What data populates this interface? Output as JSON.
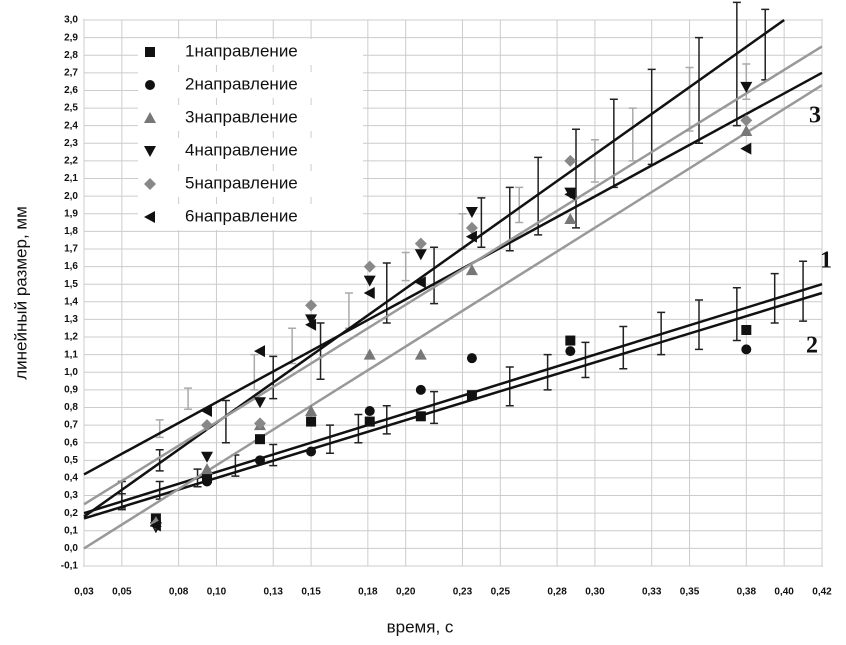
{
  "chart_data": {
    "type": "scatter",
    "x_label": "время, с",
    "y_label": "линейный размер, мм",
    "xlim": [
      0.03,
      0.42
    ],
    "ylim": [
      -0.1,
      3.0
    ],
    "grid": true,
    "legend": "upper left",
    "xticks": [
      {
        "value": 0.03,
        "label": "0,03"
      },
      {
        "value": 0.05,
        "label": "0,05"
      },
      {
        "value": 0.08,
        "label": "0,08"
      },
      {
        "value": 0.1,
        "label": "0,10"
      },
      {
        "value": 0.13,
        "label": "0,13"
      },
      {
        "value": 0.15,
        "label": "0,15"
      },
      {
        "value": 0.18,
        "label": "0,18"
      },
      {
        "value": 0.2,
        "label": "0,20"
      },
      {
        "value": 0.23,
        "label": "0,23"
      },
      {
        "value": 0.25,
        "label": "0,25"
      },
      {
        "value": 0.28,
        "label": "0,28"
      },
      {
        "value": 0.3,
        "label": "0,30"
      },
      {
        "value": 0.33,
        "label": "0,33"
      },
      {
        "value": 0.35,
        "label": "0,35"
      },
      {
        "value": 0.38,
        "label": "0,38"
      },
      {
        "value": 0.4,
        "label": "0,40"
      },
      {
        "value": 0.42,
        "label": "0,42"
      }
    ],
    "yticks": [
      {
        "value": -0.1,
        "label": "-0,1"
      },
      {
        "value": 0.0,
        "label": "0,0"
      },
      {
        "value": 0.1,
        "label": "0,1"
      },
      {
        "value": 0.2,
        "label": "0,2"
      },
      {
        "value": 0.3,
        "label": "0,3"
      },
      {
        "value": 0.4,
        "label": "0,4"
      },
      {
        "value": 0.5,
        "label": "0,5"
      },
      {
        "value": 0.6,
        "label": "0,6"
      },
      {
        "value": 0.7,
        "label": "0,7"
      },
      {
        "value": 0.8,
        "label": "0,8"
      },
      {
        "value": 0.9,
        "label": "0,9"
      },
      {
        "value": 1.0,
        "label": "1,0"
      },
      {
        "value": 1.1,
        "label": "1,1"
      },
      {
        "value": 1.2,
        "label": "1,2"
      },
      {
        "value": 1.3,
        "label": "1,3"
      },
      {
        "value": 1.4,
        "label": "1,4"
      },
      {
        "value": 1.5,
        "label": "1,5"
      },
      {
        "value": 1.6,
        "label": "1,6"
      },
      {
        "value": 1.7,
        "label": "1,7"
      },
      {
        "value": 1.8,
        "label": "1,8"
      },
      {
        "value": 1.9,
        "label": "1,9"
      },
      {
        "value": 2.0,
        "label": "2,0"
      },
      {
        "value": 2.1,
        "label": "2,1"
      },
      {
        "value": 2.2,
        "label": "2,2"
      },
      {
        "value": 2.3,
        "label": "2,3"
      },
      {
        "value": 2.4,
        "label": "2,4"
      },
      {
        "value": 2.5,
        "label": "2,5"
      },
      {
        "value": 2.6,
        "label": "2,6"
      },
      {
        "value": 2.7,
        "label": "2,7"
      },
      {
        "value": 2.8,
        "label": "2,8"
      },
      {
        "value": 2.9,
        "label": "2,9"
      },
      {
        "value": 3.0,
        "label": "3,0"
      }
    ],
    "series": [
      {
        "name": "1направление",
        "marker": "square",
        "color": "#111111",
        "x": [
          0.068,
          0.095,
          0.123,
          0.15,
          0.181,
          0.208,
          0.235,
          0.287,
          0.38
        ],
        "values": [
          0.17,
          0.4,
          0.62,
          0.72,
          0.72,
          0.75,
          0.87,
          1.18,
          1.24
        ]
      },
      {
        "name": "2направление",
        "marker": "circle",
        "color": "#111111",
        "x": [
          0.068,
          0.095,
          0.123,
          0.15,
          0.181,
          0.208,
          0.235,
          0.287,
          0.38
        ],
        "values": [
          0.15,
          0.38,
          0.5,
          0.55,
          0.78,
          0.9,
          1.08,
          1.12,
          1.13
        ]
      },
      {
        "name": "3направление",
        "marker": "triangle-up",
        "color": "#777777",
        "x": [
          0.068,
          0.095,
          0.123,
          0.15,
          0.181,
          0.208,
          0.235,
          0.287,
          0.38
        ],
        "values": [
          0.15,
          0.45,
          0.7,
          0.78,
          1.1,
          1.1,
          1.58,
          1.87,
          2.37
        ]
      },
      {
        "name": "4направление",
        "marker": "triangle-down",
        "color": "#111111",
        "x": [
          0.068,
          0.095,
          0.123,
          0.15,
          0.181,
          0.208,
          0.235,
          0.287,
          0.38
        ],
        "values": [
          0.12,
          0.52,
          0.83,
          1.3,
          1.52,
          1.67,
          1.91,
          2.02,
          2.62
        ]
      },
      {
        "name": "5направление",
        "marker": "diamond",
        "color": "#888888",
        "x": [
          0.068,
          0.095,
          0.123,
          0.15,
          0.181,
          0.208,
          0.235,
          0.287,
          0.38
        ],
        "values": [
          0.14,
          0.7,
          0.71,
          1.38,
          1.6,
          1.73,
          1.82,
          2.2,
          2.43
        ]
      },
      {
        "name": "6направление",
        "marker": "triangle-left",
        "color": "#111111",
        "x": [
          0.068,
          0.095,
          0.123,
          0.15,
          0.181,
          0.208,
          0.235,
          0.287,
          0.38
        ],
        "values": [
          0.13,
          0.78,
          1.12,
          1.27,
          1.45,
          1.51,
          1.77,
          2.01,
          2.27
        ]
      }
    ],
    "fit_lines": [
      {
        "color": "#111111",
        "x": [
          0.03,
          0.42
        ],
        "values": [
          0.2,
          1.5
        ]
      },
      {
        "color": "#111111",
        "x": [
          0.03,
          0.42
        ],
        "values": [
          0.17,
          1.45
        ]
      },
      {
        "color": "#111111",
        "x": [
          0.03,
          0.42
        ],
        "values": [
          0.42,
          2.7
        ]
      },
      {
        "color": "#111111",
        "x": [
          0.03,
          0.4
        ],
        "values": [
          0.18,
          3.0
        ]
      },
      {
        "color": "#999999",
        "x": [
          0.03,
          0.42
        ],
        "values": [
          0.0,
          2.63
        ]
      },
      {
        "color": "#999999",
        "x": [
          0.03,
          0.42
        ],
        "values": [
          0.25,
          2.85
        ]
      }
    ],
    "error_bars": [
      {
        "color": "#222222",
        "x": [
          0.05,
          0.07,
          0.09,
          0.11,
          0.13,
          0.16,
          0.175,
          0.19,
          0.215,
          0.255,
          0.275,
          0.295,
          0.315,
          0.335,
          0.355,
          0.375,
          0.395,
          0.41
        ],
        "values": [
          0.27,
          0.33,
          0.4,
          0.47,
          0.53,
          0.62,
          0.68,
          0.73,
          0.8,
          0.92,
          1.0,
          1.07,
          1.14,
          1.22,
          1.27,
          1.33,
          1.42,
          1.46
        ],
        "errors": [
          0.04,
          0.05,
          0.05,
          0.06,
          0.06,
          0.08,
          0.08,
          0.08,
          0.09,
          0.11,
          0.1,
          0.1,
          0.12,
          0.12,
          0.14,
          0.15,
          0.14,
          0.17
        ]
      },
      {
        "color": "#222222",
        "x": [
          0.05,
          0.07,
          0.105,
          0.13,
          0.155,
          0.19,
          0.215,
          0.24,
          0.255,
          0.27,
          0.29,
          0.31,
          0.33,
          0.355,
          0.375,
          0.39
        ],
        "values": [
          0.3,
          0.5,
          0.72,
          0.97,
          1.12,
          1.45,
          1.55,
          1.85,
          1.87,
          2.0,
          2.1,
          2.3,
          2.45,
          2.6,
          2.75,
          2.86
        ],
        "errors": [
          0.08,
          0.06,
          0.12,
          0.12,
          0.16,
          0.17,
          0.16,
          0.14,
          0.18,
          0.22,
          0.28,
          0.25,
          0.27,
          0.3,
          0.35,
          0.2
        ]
      },
      {
        "color": "#aaaaaa",
        "x": [
          0.07,
          0.085,
          0.12,
          0.14,
          0.17,
          0.2,
          0.23,
          0.26,
          0.3,
          0.32,
          0.35,
          0.38
        ],
        "values": [
          0.68,
          0.85,
          1.0,
          1.15,
          1.35,
          1.6,
          1.8,
          1.95,
          2.2,
          2.35,
          2.55,
          2.65
        ],
        "errors": [
          0.05,
          0.06,
          0.1,
          0.1,
          0.1,
          0.08,
          0.1,
          0.1,
          0.12,
          0.15,
          0.18,
          0.1
        ]
      }
    ],
    "annotations": [
      "1",
      "2",
      "3"
    ]
  }
}
